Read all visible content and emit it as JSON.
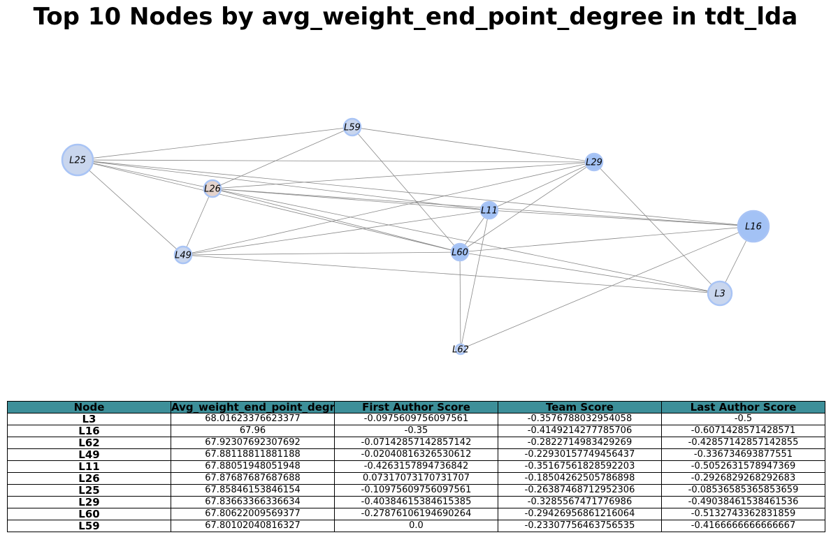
{
  "title": "Top 10 Nodes by avg_weight_end_point_degree in tdt_lda",
  "graph": {
    "nodes": [
      {
        "id": "L25",
        "size": "large",
        "color": "#c9d6ee",
        "ring": "#a9c4f5"
      },
      {
        "id": "L59",
        "size": "small",
        "color": "#c9d6ee",
        "ring": "#a9c4f5"
      },
      {
        "id": "L29",
        "size": "small",
        "color": "#a3c2f5",
        "ring": "#a9c4f5"
      },
      {
        "id": "L26",
        "size": "small",
        "color": "#e4d3cc",
        "ring": "#a9c4f5"
      },
      {
        "id": "L11",
        "size": "small",
        "color": "#a3c2f5",
        "ring": "#a9c4f5"
      },
      {
        "id": "L16",
        "size": "large",
        "color": "#a3c2f5",
        "ring": "#a9c4f5"
      },
      {
        "id": "L49",
        "size": "small",
        "color": "#c9d6ee",
        "ring": "#a9c4f5"
      },
      {
        "id": "L60",
        "size": "small",
        "color": "#a3c2f5",
        "ring": "#a9c4f5"
      },
      {
        "id": "L3",
        "size": "medium",
        "color": "#c9d6ee",
        "ring": "#a9c4f5"
      },
      {
        "id": "L62",
        "size": "tiny",
        "color": "#c9d6ee",
        "ring": "#a9c4f5"
      }
    ],
    "edges": [
      [
        "L25",
        "L59"
      ],
      [
        "L25",
        "L29"
      ],
      [
        "L25",
        "L26"
      ],
      [
        "L25",
        "L11"
      ],
      [
        "L25",
        "L16"
      ],
      [
        "L25",
        "L60"
      ],
      [
        "L25",
        "L49"
      ],
      [
        "L59",
        "L26"
      ],
      [
        "L59",
        "L29"
      ],
      [
        "L59",
        "L60"
      ],
      [
        "L29",
        "L26"
      ],
      [
        "L29",
        "L11"
      ],
      [
        "L29",
        "L49"
      ],
      [
        "L29",
        "L60"
      ],
      [
        "L29",
        "L3"
      ],
      [
        "L26",
        "L11"
      ],
      [
        "L26",
        "L60"
      ],
      [
        "L26",
        "L16"
      ],
      [
        "L26",
        "L3"
      ],
      [
        "L26",
        "L49"
      ],
      [
        "L11",
        "L16"
      ],
      [
        "L11",
        "L49"
      ],
      [
        "L11",
        "L60"
      ],
      [
        "L11",
        "L62"
      ],
      [
        "L16",
        "L60"
      ],
      [
        "L16",
        "L3"
      ],
      [
        "L16",
        "L62"
      ],
      [
        "L49",
        "L60"
      ],
      [
        "L49",
        "L3"
      ],
      [
        "L60",
        "L3"
      ],
      [
        "L60",
        "L62"
      ]
    ],
    "edge_color": "#888888"
  },
  "table": {
    "header_color": "#3d8f99",
    "columns": [
      "Node",
      "Avg_weight_end_point_degr",
      "First Author Score",
      "Team Score",
      "Last Author Score"
    ],
    "rows": [
      [
        "L3",
        "68.01623376623377",
        "-0.0975609756097561",
        "-0.3576788032954058",
        "-0.5"
      ],
      [
        "L16",
        "67.96",
        "-0.35",
        "-0.4149214277785706",
        "-0.6071428571428571"
      ],
      [
        "L62",
        "67.92307692307692",
        "-0.07142857142857142",
        "-0.2822714983429269",
        "-0.42857142857142855"
      ],
      [
        "L49",
        "67.88118811881188",
        "-0.02040816326530612",
        "-0.22930157749456437",
        "-0.336734693877551"
      ],
      [
        "L11",
        "67.88051948051948",
        "-0.4263157894736842",
        "-0.35167561828592203",
        "-0.5052631578947369"
      ],
      [
        "L26",
        "67.87687687687688",
        "0.07317073170731707",
        "-0.18504262505786898",
        "-0.2926829268292683"
      ],
      [
        "L25",
        "67.85846153846154",
        "-0.10975609756097561",
        "-0.26387468712952306",
        "-0.08536585365853659"
      ],
      [
        "L29",
        "67.83663366336634",
        "-0.40384615384615385",
        "-0.3285567471776986",
        "-0.49038461538461536"
      ],
      [
        "L60",
        "67.80622009569377",
        "-0.27876106194690264",
        "-0.29426956861216064",
        "-0.5132743362831859"
      ],
      [
        "L59",
        "67.80102040816327",
        "0.0",
        "-0.23307756463756535",
        "-0.4166666666666667"
      ]
    ]
  }
}
